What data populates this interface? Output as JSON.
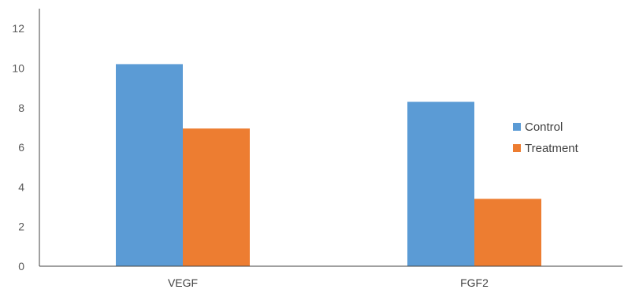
{
  "chart_data": {
    "type": "bar",
    "title": "",
    "xlabel": "",
    "ylabel": "",
    "categories": [
      "VEGF",
      "FGF2"
    ],
    "series": [
      {
        "name": "Control",
        "color": "#5B9BD5",
        "values": [
          10.2,
          8.3
        ]
      },
      {
        "name": "Treatment",
        "color": "#ED7D31",
        "values": [
          6.95,
          3.4
        ]
      }
    ],
    "ylim": [
      0,
      13
    ],
    "yticks": [
      0,
      2,
      4,
      6,
      8,
      10,
      12
    ],
    "grid": false,
    "legend_position": "right"
  }
}
